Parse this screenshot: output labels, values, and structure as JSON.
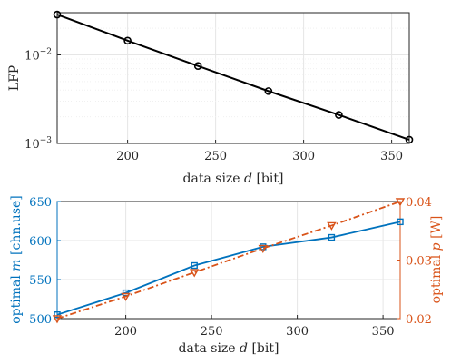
{
  "chart_data": [
    {
      "type": "line",
      "xlabel": {
        "prefix": "data size ",
        "var": "d",
        "suffix": " [bit]"
      },
      "ylabel": "LFP",
      "xlim": [
        160,
        360
      ],
      "ylim": [
        0.001,
        0.03
      ],
      "yscale": "log",
      "grid": true,
      "xticks": [
        200,
        250,
        300,
        350
      ],
      "ytick_labels": [
        {
          "value": 0.01,
          "base": "10",
          "exp": "−2"
        },
        {
          "value": 0.001,
          "base": "10",
          "exp": "−3"
        }
      ],
      "series": [
        {
          "color": "#000000",
          "marker": "circle",
          "x": [
            160,
            200,
            240,
            280,
            320,
            360
          ],
          "y": [
            0.0286,
            0.0145,
            0.0075,
            0.0039,
            0.0021,
            0.0011
          ]
        }
      ]
    },
    {
      "type": "line",
      "xlabel": {
        "prefix": "data size ",
        "var": "d",
        "suffix": " [bit]"
      },
      "xlim": [
        160,
        360
      ],
      "xticks": [
        200,
        250,
        300,
        350
      ],
      "grid": true,
      "y_left": {
        "label": {
          "prefix": "optimal ",
          "var": "m",
          "suffix": " [chn.use]"
        },
        "color": "#0072BD",
        "lim": [
          500,
          650
        ],
        "ticks": [
          500,
          550,
          600,
          650
        ]
      },
      "y_right": {
        "label": {
          "prefix": "optimal ",
          "var": "p",
          "suffix": " [W]"
        },
        "color": "#D95319",
        "lim": [
          0.02,
          0.04
        ],
        "ticks": [
          "0.02",
          "0.03",
          "0.04"
        ]
      },
      "series": [
        {
          "axis": "left",
          "color": "#0072BD",
          "marker": "square",
          "linestyle": "solid",
          "x": [
            160,
            200,
            240,
            280,
            320,
            360
          ],
          "y": [
            505,
            533,
            568,
            592,
            604,
            624
          ]
        },
        {
          "axis": "right",
          "color": "#D95319",
          "marker": "triangle-down",
          "linestyle": "dash-dot",
          "x": [
            160,
            200,
            240,
            280,
            320,
            360
          ],
          "y": [
            0.02,
            0.0238,
            0.0279,
            0.032,
            0.0359,
            0.04
          ]
        }
      ]
    }
  ]
}
